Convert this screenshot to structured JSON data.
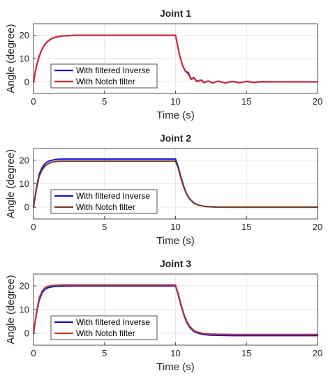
{
  "colors": {
    "filtered_inverse": "#1010e0",
    "notch_joint1": "#ee1c24",
    "notch_joint2": "#7a3b1c",
    "notch_joint3": "#c0392b",
    "grid": "#e6e6e6",
    "axis": "#262626"
  },
  "chart_data": [
    {
      "type": "line",
      "title": "Joint 1",
      "xlabel": "Time (s)",
      "ylabel": "Angle (degree)",
      "xlim": [
        0,
        20
      ],
      "ylim": [
        -5,
        25
      ],
      "xticks": [
        "0",
        "5",
        "10",
        "15",
        "20"
      ],
      "yticks": [
        "0",
        "10",
        "20"
      ],
      "grid": true,
      "legend_position": "lower-left",
      "series": [
        {
          "name": "With filtered Inverse",
          "color": "#1010e0",
          "x": [
            0,
            0.2,
            0.4,
            0.6,
            0.8,
            1.0,
            1.3,
            1.6,
            2.0,
            3,
            5,
            7,
            9,
            10,
            10.1,
            10.3,
            10.5,
            10.7,
            10.9,
            11.1,
            11.3,
            11.5,
            11.8,
            12.0,
            12.3,
            12.6,
            13.0,
            13.5,
            14.0,
            14.5,
            15.0,
            15.5,
            16.0,
            17,
            18,
            19,
            20
          ],
          "values": [
            0,
            6.6,
            11,
            14,
            16.1,
            17.5,
            18.7,
            19.3,
            19.7,
            20,
            20,
            20,
            20,
            20,
            17,
            11,
            7,
            4.5,
            4,
            1.2,
            1.8,
            0.2,
            0.8,
            -0.3,
            0.3,
            -0.4,
            0.2,
            -0.4,
            0.1,
            -0.3,
            0.1,
            -0.2,
            0.0,
            0,
            0,
            0,
            0
          ]
        },
        {
          "name": "With Notch filter",
          "color": "#ee1c24",
          "x": [
            0,
            0.2,
            0.4,
            0.6,
            0.8,
            1.0,
            1.3,
            1.6,
            2.0,
            3,
            5,
            7,
            9,
            10,
            10.1,
            10.3,
            10.5,
            10.7,
            10.9,
            11.1,
            11.3,
            11.5,
            11.8,
            12.0,
            12.3,
            12.6,
            13.0,
            13.5,
            14.0,
            14.5,
            15.0,
            15.5,
            16.0,
            17,
            18,
            19,
            20
          ],
          "values": [
            0,
            6.5,
            10.9,
            13.9,
            16,
            17.4,
            18.6,
            19.3,
            19.7,
            20,
            20,
            20,
            20,
            20,
            17,
            11,
            7,
            4.5,
            3.5,
            1,
            1.6,
            0.1,
            0.7,
            -0.4,
            0.3,
            -0.5,
            0.3,
            -0.5,
            0.2,
            -0.4,
            0.2,
            -0.3,
            0.1,
            0,
            0,
            0,
            0
          ]
        }
      ]
    },
    {
      "type": "line",
      "title": "Joint 2",
      "xlabel": "Time (s)",
      "ylabel": "Angle (degree)",
      "xlim": [
        0,
        20
      ],
      "ylim": [
        -5,
        25
      ],
      "xticks": [
        "0",
        "5",
        "10",
        "15",
        "20"
      ],
      "yticks": [
        "0",
        "10",
        "20"
      ],
      "grid": true,
      "legend_position": "lower-left",
      "series": [
        {
          "name": "With filtered Inverse",
          "color": "#1010e0",
          "x": [
            0,
            0.2,
            0.4,
            0.6,
            0.8,
            1.0,
            1.3,
            1.6,
            2.0,
            3,
            5,
            7,
            9,
            10,
            10.2,
            10.4,
            10.6,
            10.8,
            11.0,
            11.3,
            11.6,
            12.0,
            12.5,
            13,
            14,
            16,
            18,
            20
          ],
          "values": [
            0,
            8,
            14,
            16.8,
            18.5,
            19.4,
            20,
            20.4,
            20.5,
            20.5,
            20.5,
            20.5,
            20.5,
            20.5,
            17,
            12.5,
            8.5,
            5.5,
            3.5,
            1.8,
            0.9,
            0.4,
            0.15,
            0.05,
            0,
            0,
            0,
            0
          ]
        },
        {
          "name": "With Notch filter",
          "color": "#7a3b1c",
          "x": [
            0,
            0.2,
            0.4,
            0.6,
            0.8,
            1.0,
            1.3,
            1.6,
            2.0,
            3,
            5,
            7,
            9,
            10,
            10.2,
            10.4,
            10.6,
            10.8,
            11.0,
            11.3,
            11.6,
            12.0,
            12.5,
            13,
            14,
            16,
            18,
            20
          ],
          "values": [
            0,
            7.5,
            13.2,
            15.8,
            17.5,
            18.4,
            19.2,
            19.5,
            19.6,
            19.6,
            19.6,
            19.6,
            19.6,
            19.6,
            16.5,
            12,
            8.2,
            5.3,
            3.4,
            1.7,
            0.9,
            0.4,
            0.15,
            0.05,
            0,
            0,
            0,
            0
          ]
        }
      ]
    },
    {
      "type": "line",
      "title": "Joint 3",
      "xlabel": "Time (s)",
      "ylabel": "Angle (degree)",
      "xlim": [
        0,
        20
      ],
      "ylim": [
        -5,
        25
      ],
      "xticks": [
        "0",
        "5",
        "10",
        "15",
        "20"
      ],
      "yticks": [
        "0",
        "10",
        "20"
      ],
      "grid": true,
      "legend_position": "lower-left",
      "series": [
        {
          "name": "With filtered Inverse",
          "color": "#1010e0",
          "x": [
            0,
            0.2,
            0.4,
            0.6,
            0.8,
            1.0,
            1.3,
            1.6,
            2.0,
            3,
            5,
            7,
            9,
            10,
            10.2,
            10.4,
            10.6,
            10.8,
            11.0,
            11.3,
            11.6,
            12.0,
            12.5,
            13,
            14,
            16,
            18,
            20
          ],
          "values": [
            0,
            8,
            14,
            17,
            18.5,
            19.2,
            19.6,
            19.8,
            19.9,
            20,
            20,
            20,
            20,
            20,
            16,
            11.5,
            7.5,
            4.5,
            2.5,
            0.8,
            0,
            -0.5,
            -0.8,
            -0.9,
            -1,
            -1,
            -1,
            -1
          ]
        },
        {
          "name": "With Notch filter",
          "color": "#c0392b",
          "x": [
            0,
            0.2,
            0.4,
            0.6,
            0.8,
            1.0,
            1.3,
            1.6,
            2.0,
            3,
            5,
            7,
            9,
            10,
            10.2,
            10.4,
            10.6,
            10.8,
            11.0,
            11.3,
            11.6,
            12.0,
            12.5,
            13,
            14,
            16,
            18,
            20
          ],
          "values": [
            0,
            8.5,
            15,
            17.8,
            19.2,
            19.8,
            20.2,
            20.3,
            20.4,
            20.4,
            20.4,
            20.4,
            20.4,
            20.4,
            16.5,
            12,
            8,
            5,
            3,
            1.2,
            0.4,
            -0.1,
            -0.3,
            -0.4,
            -0.5,
            -0.5,
            -0.5,
            -0.5
          ]
        }
      ]
    }
  ]
}
